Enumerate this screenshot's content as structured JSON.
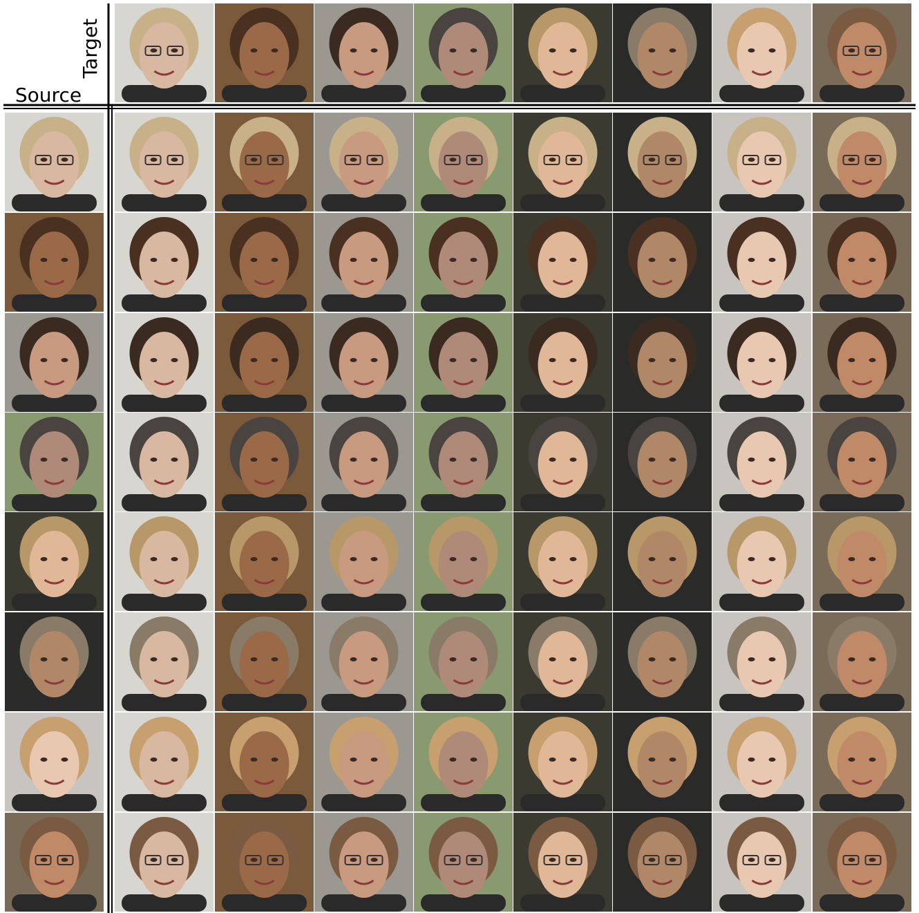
{
  "labels": {
    "target": "Target",
    "source": "Source"
  }
}
